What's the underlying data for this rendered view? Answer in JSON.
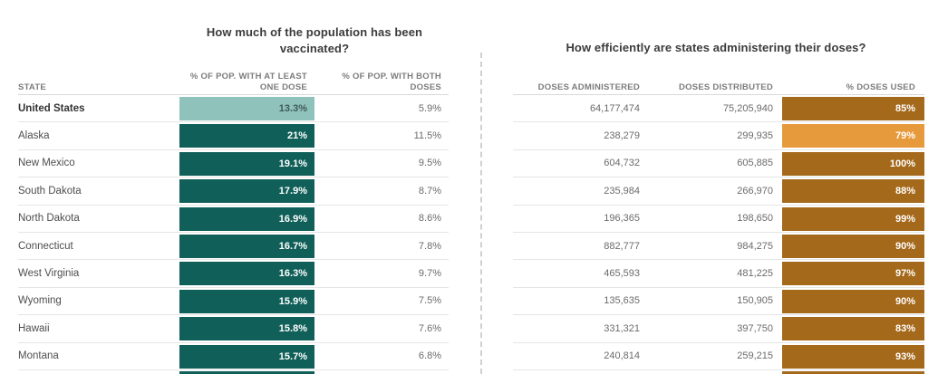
{
  "colors": {
    "teal_dark": "#105F58",
    "teal_light": "#8FC2BB",
    "orange_dark": "#A5691B",
    "orange_light": "#E79A3C",
    "bar_text_light": "#FFFFFF",
    "bar_text_dark": "#3F5B57"
  },
  "left_section": {
    "title": "How much of the population has been vaccinated?",
    "headers": {
      "state": "STATE",
      "one_dose": "% OF POP. WITH AT LEAST ONE DOSE",
      "both_doses": "% OF POP. WITH BOTH DOSES"
    }
  },
  "right_section": {
    "title": "How efficiently are states administering their doses?",
    "headers": {
      "administered": "DOSES ADMINISTERED",
      "distributed": "DOSES DISTRIBUTED",
      "used": "% DOSES USED"
    }
  },
  "rows": [
    {
      "state": "United States",
      "one_dose": "13.3%",
      "both_doses": "5.9%",
      "administered": "64,177,474",
      "distributed": "75,205,940",
      "used": "85%",
      "highlight": true,
      "used_shade": "dark"
    },
    {
      "state": "Alaska",
      "one_dose": "21%",
      "both_doses": "11.5%",
      "administered": "238,279",
      "distributed": "299,935",
      "used": "79%",
      "highlight": false,
      "used_shade": "light"
    },
    {
      "state": "New Mexico",
      "one_dose": "19.1%",
      "both_doses": "9.5%",
      "administered": "604,732",
      "distributed": "605,885",
      "used": "100%",
      "highlight": false,
      "used_shade": "dark"
    },
    {
      "state": "South Dakota",
      "one_dose": "17.9%",
      "both_doses": "8.7%",
      "administered": "235,984",
      "distributed": "266,970",
      "used": "88%",
      "highlight": false,
      "used_shade": "dark"
    },
    {
      "state": "North Dakota",
      "one_dose": "16.9%",
      "both_doses": "8.6%",
      "administered": "196,365",
      "distributed": "198,650",
      "used": "99%",
      "highlight": false,
      "used_shade": "dark"
    },
    {
      "state": "Connecticut",
      "one_dose": "16.7%",
      "both_doses": "7.8%",
      "administered": "882,777",
      "distributed": "984,275",
      "used": "90%",
      "highlight": false,
      "used_shade": "dark"
    },
    {
      "state": "West Virginia",
      "one_dose": "16.3%",
      "both_doses": "9.7%",
      "administered": "465,593",
      "distributed": "481,225",
      "used": "97%",
      "highlight": false,
      "used_shade": "dark"
    },
    {
      "state": "Wyoming",
      "one_dose": "15.9%",
      "both_doses": "7.5%",
      "administered": "135,635",
      "distributed": "150,905",
      "used": "90%",
      "highlight": false,
      "used_shade": "dark"
    },
    {
      "state": "Hawaii",
      "one_dose": "15.8%",
      "both_doses": "7.6%",
      "administered": "331,321",
      "distributed": "397,750",
      "used": "83%",
      "highlight": false,
      "used_shade": "dark"
    },
    {
      "state": "Montana",
      "one_dose": "15.7%",
      "both_doses": "6.8%",
      "administered": "240,814",
      "distributed": "259,215",
      "used": "93%",
      "highlight": false,
      "used_shade": "dark"
    }
  ],
  "chart_data": {
    "type": "table",
    "titles": [
      "How much of the population has been vaccinated?",
      "How efficiently are states administering their doses?"
    ],
    "columns": [
      "State",
      "% of pop. with at least one dose",
      "% of pop. with both doses",
      "Doses administered",
      "Doses distributed",
      "% doses used"
    ],
    "rows": [
      [
        "United States",
        13.3,
        5.9,
        64177474,
        75205940,
        85
      ],
      [
        "Alaska",
        21,
        11.5,
        238279,
        299935,
        79
      ],
      [
        "New Mexico",
        19.1,
        9.5,
        604732,
        605885,
        100
      ],
      [
        "South Dakota",
        17.9,
        8.7,
        235984,
        266970,
        88
      ],
      [
        "North Dakota",
        16.9,
        8.6,
        196365,
        198650,
        99
      ],
      [
        "Connecticut",
        16.7,
        7.8,
        882777,
        984275,
        90
      ],
      [
        "West Virginia",
        16.3,
        9.7,
        465593,
        481225,
        97
      ],
      [
        "Wyoming",
        15.9,
        7.5,
        135635,
        150905,
        90
      ],
      [
        "Hawaii",
        15.8,
        7.6,
        331321,
        397750,
        83
      ],
      [
        "Montana",
        15.7,
        6.8,
        240814,
        259215,
        93
      ]
    ],
    "notes": "Bar cells are constant-width colored blocks: teal for one-dose column (US row lighter teal), orange for % doses used (Alaska lighter orange). Bottom row of next entries is cut off at image edge."
  }
}
